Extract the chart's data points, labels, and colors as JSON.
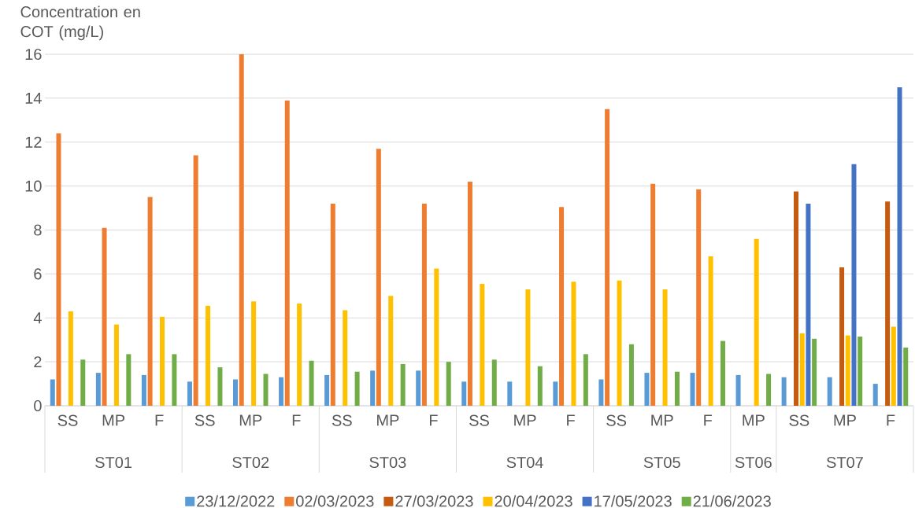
{
  "chart_data": {
    "type": "bar",
    "ylabel": "Concentration en COT (mg/L)",
    "categories": [
      "SS",
      "MP",
      "F",
      "SS",
      "MP",
      "F",
      "SS",
      "MP",
      "F",
      "SS",
      "MP",
      "F",
      "SS",
      "MP",
      "F",
      "MP",
      "SS",
      "MP",
      "F"
    ],
    "annotations": [
      "ST01",
      "ST02",
      "ST03",
      "ST04",
      "ST05",
      "ST06",
      "ST07"
    ],
    "series": [
      {
        "name": "23/12/2022",
        "color": "#5b9bd5",
        "values": [
          1.2,
          1.5,
          1.4,
          1.1,
          1.2,
          1.3,
          1.4,
          1.6,
          1.6,
          1.1,
          1.1,
          1.1,
          1.2,
          1.5,
          1.5,
          1.4,
          1.3,
          1.3,
          1.0
        ]
      },
      {
        "name": "02/03/2023",
        "color": "#ed7d31",
        "values": [
          12.4,
          8.1,
          9.5,
          11.4,
          16.0,
          13.9,
          9.2,
          11.7,
          9.2,
          10.2,
          null,
          9.05,
          13.5,
          10.1,
          9.85,
          null,
          null,
          null,
          null
        ]
      },
      {
        "name": "27/03/2023",
        "color": "#c55a11",
        "values": [
          null,
          null,
          null,
          null,
          null,
          null,
          null,
          null,
          null,
          null,
          null,
          null,
          null,
          null,
          null,
          null,
          9.75,
          6.3,
          9.3
        ]
      },
      {
        "name": "20/04/2023",
        "color": "#ffc000",
        "values": [
          4.3,
          3.7,
          4.05,
          4.55,
          4.75,
          4.65,
          4.35,
          5.0,
          6.25,
          5.55,
          5.3,
          5.65,
          5.7,
          5.3,
          6.8,
          7.6,
          3.3,
          3.2,
          3.6
        ]
      },
      {
        "name": "17/05/2023",
        "color": "#4472c4",
        "values": [
          null,
          null,
          null,
          null,
          null,
          null,
          null,
          null,
          null,
          null,
          null,
          null,
          null,
          null,
          null,
          null,
          9.2,
          11.0,
          14.5
        ]
      },
      {
        "name": "21/06/2023",
        "color": "#70ad47",
        "values": [
          2.1,
          2.35,
          2.35,
          1.75,
          1.45,
          2.05,
          1.55,
          1.9,
          2.0,
          2.1,
          1.8,
          2.35,
          2.8,
          1.55,
          2.95,
          1.45,
          3.05,
          3.15,
          2.65
        ]
      }
    ],
    "ylim": [
      0,
      16
    ],
    "yticks": [
      0,
      2,
      4,
      6,
      8,
      10,
      12,
      14,
      16
    ],
    "grid": "y",
    "legend": "bottom"
  }
}
